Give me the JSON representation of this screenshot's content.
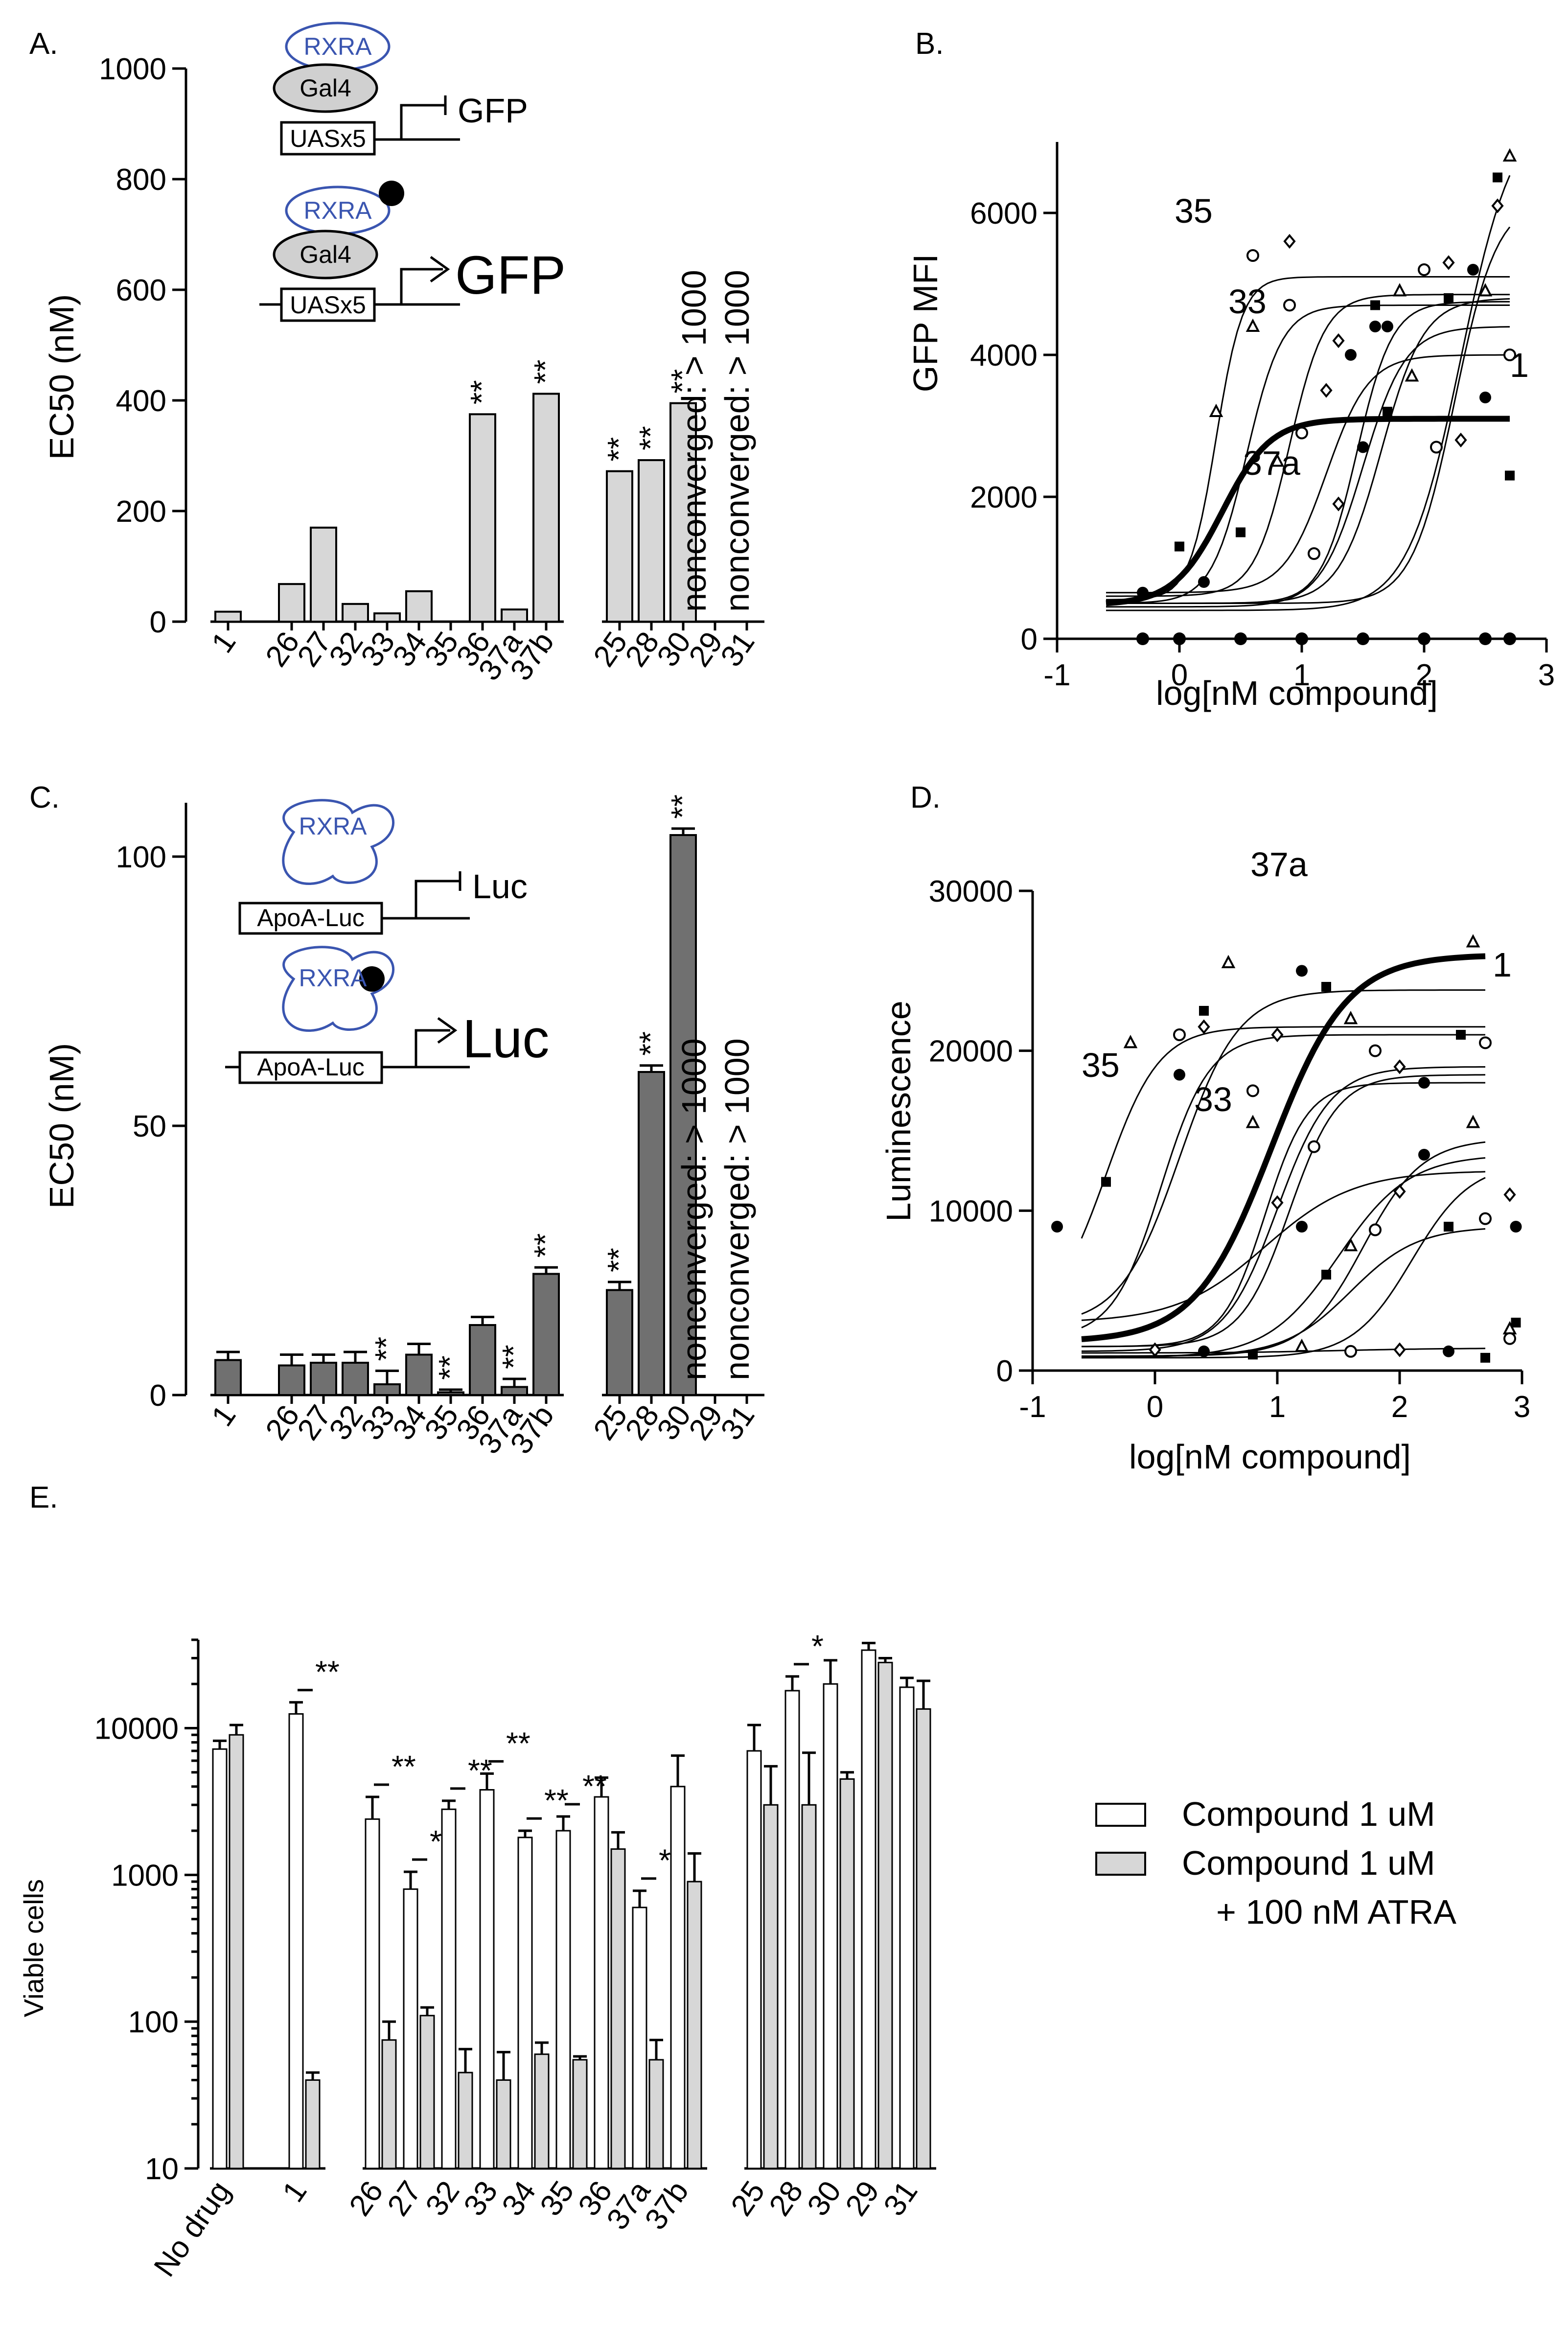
{
  "panels": {
    "A": "A.",
    "B": "B.",
    "C": "C.",
    "D": "D.",
    "E": "E."
  },
  "schematics": {
    "a": {
      "rxra": "RXRA",
      "gal4": "Gal4",
      "uas": "UASx5",
      "gfp": "GFP"
    },
    "c": {
      "rxra": "RXRA",
      "apoa": "ApoA-Luc",
      "luc": "Luc"
    }
  },
  "chart_data": [
    {
      "id": "A",
      "type": "bar",
      "ylabel": "EC50 (nM)",
      "ylim": [
        0,
        1000
      ],
      "yticks": [
        0,
        200,
        400,
        600,
        800,
        1000
      ],
      "categories": [
        "1",
        "26",
        "27",
        "32",
        "33",
        "34",
        "35",
        "36",
        "37a",
        "37b",
        "25",
        "28",
        "30",
        "29",
        "31"
      ],
      "values": [
        18,
        68,
        170,
        32,
        15,
        55,
        0,
        375,
        22,
        412,
        272,
        292,
        395,
        null,
        null
      ],
      "significance": [
        "",
        "",
        "",
        "",
        "",
        "",
        "",
        "**",
        "",
        "**",
        "**",
        "**",
        "**",
        "",
        ""
      ],
      "annotations": [
        "nonconverged: > 1000",
        "nonconverged: > 1000"
      ],
      "color": "#d7d7d7"
    },
    {
      "id": "B",
      "type": "scatter",
      "xlabel": "log[nM compound]",
      "ylabel": "GFP MFI",
      "xlim": [
        -1,
        3
      ],
      "ylim": [
        0,
        7000
      ],
      "xticks": [
        -1,
        0,
        1,
        2,
        3
      ],
      "yticks": [
        0,
        2000,
        4000,
        6000
      ],
      "curve_labels": [
        "35",
        "33",
        "37a",
        "1"
      ],
      "curves": [
        {
          "label": "35",
          "bottom": 550,
          "top": 5100,
          "logec50": 0.3,
          "hill": 4
        },
        {
          "label": "33",
          "bottom": 500,
          "top": 4700,
          "logec50": 0.55,
          "hill": 3
        },
        {
          "label": "37a",
          "bottom": 600,
          "top": 4850,
          "logec50": 0.9,
          "hill": 3
        },
        {
          "label": "1",
          "bottom": 480,
          "top": 3100,
          "logec50": 0.35,
          "hill": 2.2,
          "bold": true
        },
        {
          "bottom": 650,
          "top": 4000,
          "logec50": 1.2,
          "hill": 2.5
        },
        {
          "bottom": 500,
          "top": 4750,
          "logec50": 1.45,
          "hill": 3
        },
        {
          "bottom": 450,
          "top": 4400,
          "logec50": 1.5,
          "hill": 2.5
        },
        {
          "bottom": 500,
          "top": 4800,
          "logec50": 1.65,
          "hill": 2.5
        },
        {
          "bottom": 500,
          "top": 6200,
          "logec50": 2.25,
          "hill": 2.5
        },
        {
          "bottom": 400,
          "top": 7500,
          "logec50": 2.3,
          "hill": 2
        },
        {
          "bottom": 0,
          "top": 0,
          "logec50": 1,
          "hill": 1
        }
      ],
      "points": [
        [
          -0.3,
          650
        ],
        [
          0.0,
          1300
        ],
        [
          0.3,
          3200
        ],
        [
          0.6,
          5400
        ],
        [
          0.9,
          5600
        ],
        [
          0.2,
          800
        ],
        [
          0.5,
          1500
        ],
        [
          0.8,
          2500
        ],
        [
          1.0,
          2900
        ],
        [
          1.2,
          3500
        ],
        [
          1.4,
          4000
        ],
        [
          1.6,
          4700
        ],
        [
          1.8,
          4900
        ],
        [
          2.0,
          5200
        ],
        [
          2.2,
          5300
        ],
        [
          2.4,
          5200
        ],
        [
          2.6,
          6500
        ],
        [
          2.7,
          6800
        ],
        [
          1.1,
          1200
        ],
        [
          1.3,
          1900
        ],
        [
          1.5,
          2700
        ],
        [
          1.7,
          3200
        ],
        [
          1.9,
          3700
        ],
        [
          2.1,
          2700
        ],
        [
          2.3,
          2800
        ],
        [
          2.5,
          3400
        ],
        [
          2.7,
          2300
        ],
        [
          0.6,
          4400
        ],
        [
          0.9,
          4700
        ],
        [
          1.3,
          4200
        ],
        [
          1.7,
          4400
        ],
        [
          2.2,
          4800
        ],
        [
          2.5,
          4900
        ],
        [
          2.7,
          4000
        ],
        [
          2.6,
          6100
        ],
        [
          1.6,
          4400
        ]
      ]
    },
    {
      "id": "C",
      "type": "bar",
      "ylabel": "EC50 (nM)",
      "ylim": [
        0,
        110
      ],
      "yticks": [
        0,
        50,
        100
      ],
      "categories": [
        "1",
        "26",
        "27",
        "32",
        "33",
        "34",
        "35",
        "36",
        "37a",
        "37b",
        "25",
        "28",
        "30",
        "29",
        "31"
      ],
      "values": [
        6.5,
        5.5,
        6,
        6,
        2,
        7.5,
        0.5,
        13,
        1.5,
        22.5,
        19.5,
        60,
        104,
        null,
        null
      ],
      "errors": [
        1.5,
        2,
        1.5,
        2,
        2.5,
        2,
        0.5,
        1.5,
        1.5,
        1.2,
        1.5,
        1.2,
        1.2,
        null,
        null
      ],
      "significance": [
        "",
        "",
        "",
        "",
        "**",
        "",
        "**",
        "",
        "**",
        "**",
        "**",
        "**",
        "**",
        "",
        ""
      ],
      "annotations": [
        "nonconverged: > 1000",
        "nonconverged: > 1000"
      ],
      "color": "#707070"
    },
    {
      "id": "D",
      "type": "scatter",
      "xlabel": "log[nM compound]",
      "ylabel": "Luminescence",
      "xlim": [
        -1,
        3
      ],
      "ylim": [
        0,
        30000
      ],
      "xticks": [
        -1,
        0,
        1,
        2,
        3
      ],
      "yticks": [
        0,
        10000,
        20000,
        30000
      ],
      "curve_labels": [
        "37a",
        "35",
        "33",
        "1"
      ],
      "curves": [
        {
          "label": "35",
          "bottom": 3000,
          "top": 21500,
          "logec50": -0.4,
          "hill": 2
        },
        {
          "label": "33",
          "bottom": 2000,
          "top": 21000,
          "logec50": 0.05,
          "hill": 2.2
        },
        {
          "label": "37a",
          "bottom": 2800,
          "top": 23800,
          "logec50": 0.2,
          "hill": 1.8
        },
        {
          "label": "1",
          "bottom": 1800,
          "top": 26000,
          "logec50": 0.95,
          "hill": 1.4,
          "bold": true
        },
        {
          "bottom": 1500,
          "top": 18000,
          "logec50": 0.9,
          "hill": 2.5
        },
        {
          "bottom": 1200,
          "top": 19000,
          "logec50": 1.0,
          "hill": 2
        },
        {
          "bottom": 1500,
          "top": 18500,
          "logec50": 1.1,
          "hill": 2.2
        },
        {
          "bottom": 800,
          "top": 13500,
          "logec50": 1.5,
          "hill": 1.5
        },
        {
          "bottom": 900,
          "top": 14500,
          "logec50": 1.7,
          "hill": 1.8
        },
        {
          "bottom": 800,
          "top": 13000,
          "logec50": 2.1,
          "hill": 1.8
        },
        {
          "bottom": 900,
          "top": 9000,
          "logec50": 1.6,
          "hill": 1.6
        },
        {
          "bottom": 1100,
          "top": 1400,
          "logec50": 1.5,
          "hill": 1
        },
        {
          "bottom": 3000,
          "top": 12500,
          "logec50": 0.9,
          "hill": 1.2
        }
      ],
      "points": [
        [
          -0.8,
          9000
        ],
        [
          -0.4,
          11800
        ],
        [
          -0.2,
          20500
        ],
        [
          0.2,
          21000
        ],
        [
          0.4,
          21500
        ],
        [
          0.2,
          18500
        ],
        [
          0.4,
          22500
        ],
        [
          0.6,
          25500
        ],
        [
          0.8,
          17500
        ],
        [
          1.0,
          21000
        ],
        [
          1.2,
          25000
        ],
        [
          1.4,
          24000
        ],
        [
          1.6,
          22000
        ],
        [
          1.8,
          20000
        ],
        [
          2.0,
          19000
        ],
        [
          2.2,
          18000
        ],
        [
          2.5,
          21000
        ],
        [
          2.6,
          26800
        ],
        [
          2.7,
          20500
        ],
        [
          1.0,
          10500
        ],
        [
          1.2,
          9000
        ],
        [
          1.4,
          6000
        ],
        [
          1.6,
          7800
        ],
        [
          1.8,
          8800
        ],
        [
          2.0,
          11200
        ],
        [
          2.2,
          13500
        ],
        [
          2.4,
          9000
        ],
        [
          2.6,
          15500
        ],
        [
          2.7,
          9500
        ],
        [
          2.9,
          11000
        ],
        [
          2.95,
          9000
        ],
        [
          2.95,
          3000
        ],
        [
          2.9,
          2600
        ],
        [
          2.9,
          2000
        ],
        [
          0.0,
          1300
        ],
        [
          0.4,
          1200
        ],
        [
          0.8,
          1000
        ],
        [
          1.2,
          1500
        ],
        [
          1.6,
          1200
        ],
        [
          2.0,
          1300
        ],
        [
          2.4,
          1200
        ],
        [
          2.7,
          800
        ],
        [
          0.8,
          15500
        ],
        [
          1.3,
          14000
        ]
      ]
    },
    {
      "id": "E",
      "type": "bar",
      "ylabel": "Viable cells",
      "yscale": "log",
      "ylim": [
        10,
        40000
      ],
      "yticks": [
        10,
        100,
        1000,
        10000
      ],
      "ytick_labels": [
        "10",
        "100",
        "1000",
        "10000"
      ],
      "categories": [
        "No drug",
        "1",
        "26",
        "27",
        "32",
        "33",
        "34",
        "35",
        "36",
        "37a",
        "37b",
        "25",
        "28",
        "30",
        "29",
        "31"
      ],
      "series": [
        {
          "name": "Compound 1 uM",
          "color": "#ffffff",
          "values": [
            7200,
            12500,
            2400,
            800,
            2800,
            3800,
            1800,
            2000,
            3400,
            600,
            4000,
            7000,
            18000,
            20000,
            34000,
            19000
          ],
          "errors_hi": [
            8200,
            15000,
            3400,
            1050,
            3200,
            4900,
            2000,
            2500,
            4600,
            780,
            6500,
            10500,
            22500,
            29000,
            38000,
            22000
          ]
        },
        {
          "name": "Compound 1 uM\n+ 100 nM ATRA",
          "color": "#d7d7d7",
          "values": [
            9000,
            40,
            75,
            110,
            45,
            40,
            60,
            55,
            1500,
            55,
            900,
            3000,
            3000,
            4500,
            28000,
            13500
          ],
          "errors_hi": [
            10500,
            45,
            100,
            125,
            65,
            62,
            72,
            58,
            1950,
            75,
            1400,
            5500,
            6800,
            5000,
            30000,
            21000
          ]
        }
      ],
      "significance": [
        "",
        "**",
        "**",
        "*",
        "**",
        "**",
        "**",
        "**",
        "",
        "*",
        "",
        "",
        "*",
        "",
        "",
        ""
      ],
      "legend": [
        "Compound 1 uM",
        "Compound 1 uM",
        "+ 100 nM ATRA"
      ]
    }
  ]
}
